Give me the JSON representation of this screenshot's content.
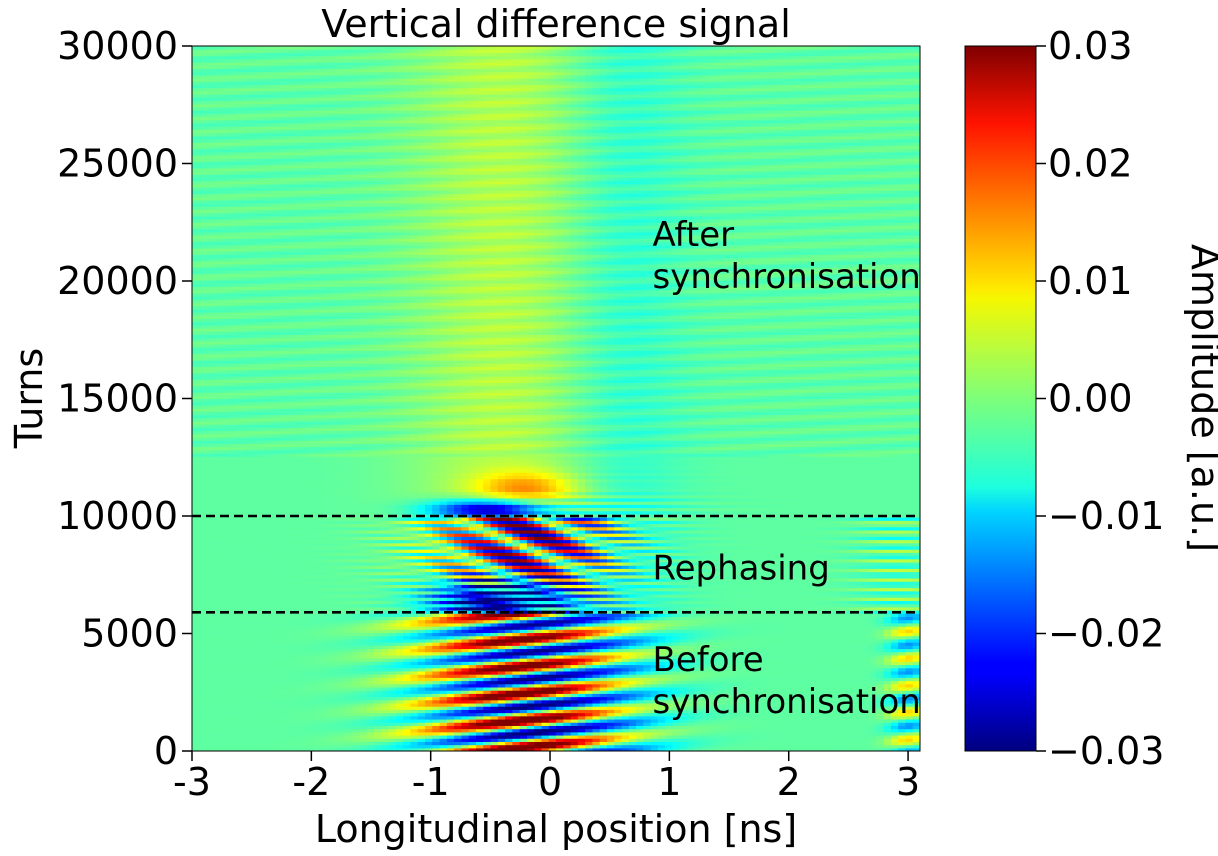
{
  "chart_data": {
    "type": "heatmap",
    "title": "Vertical difference signal",
    "xlabel": "Longitudinal position [ns]",
    "ylabel": "Turns",
    "colorbar_label": "Amplitude [a.u.]",
    "colormap": "jet",
    "xlim": [
      -3,
      3.1
    ],
    "ylim": [
      0,
      30000
    ],
    "clim": [
      -0.03,
      0.03
    ],
    "x_ticks": [
      -3,
      -2,
      -1,
      0,
      1,
      2,
      3
    ],
    "x_tick_labels": [
      "-3",
      "-2",
      "-1",
      "0",
      "1",
      "2",
      "3"
    ],
    "y_ticks": [
      0,
      5000,
      10000,
      15000,
      20000,
      25000,
      30000
    ],
    "y_tick_labels": [
      "0",
      "5000",
      "10000",
      "15000",
      "20000",
      "25000",
      "30000"
    ],
    "colorbar_ticks": [
      -0.03,
      -0.02,
      -0.01,
      0.0,
      0.01,
      0.02,
      0.03
    ],
    "colorbar_tick_labels": [
      "−0.03",
      "−0.02",
      "−0.01",
      "0.00",
      "0.01",
      "0.02",
      "0.03"
    ],
    "hlines": [
      {
        "y": 10000,
        "style": "dashed",
        "color": "#000000"
      },
      {
        "y": 5900,
        "style": "dashed",
        "color": "#000000"
      }
    ],
    "annotations": [
      {
        "lines": [
          "After",
          "synchronisation"
        ],
        "x": 0.8,
        "y": 21500
      },
      {
        "lines": [
          "Rephasing"
        ],
        "x": 0.8,
        "y": 7300
      },
      {
        "lines": [
          "Before",
          "synchronisation"
        ],
        "x": 0.8,
        "y": 3400
      }
    ]
  }
}
